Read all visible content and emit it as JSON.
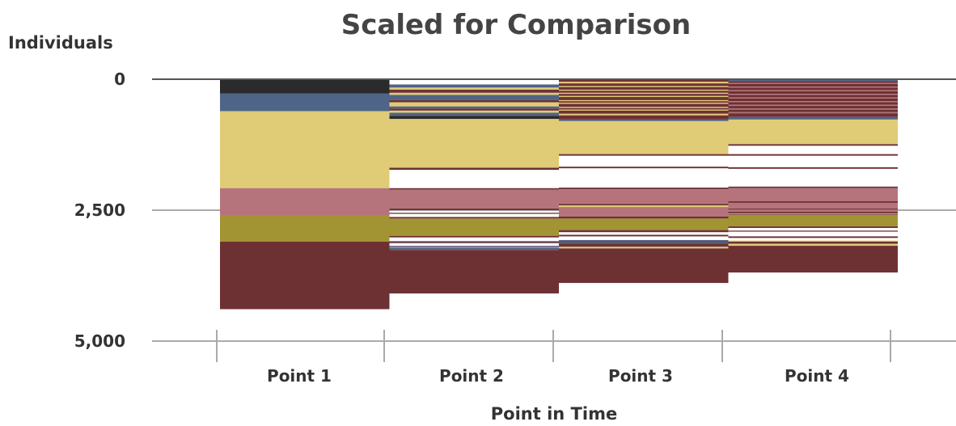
{
  "chart_data": {
    "type": "bar",
    "title": "Scaled for Comparison",
    "xlabel": "Point in Time",
    "ylabel": "Individuals",
    "y_axis_inverted": true,
    "ylim": [
      0,
      5000
    ],
    "ytick_values": [
      0,
      2500,
      5000
    ],
    "ytick_labels": [
      "0",
      "2,500",
      "5,000"
    ],
    "categories": [
      "Point 1",
      "Point 2",
      "Point 3",
      "Point 4"
    ],
    "grid": "horizontal",
    "colors": {
      "charcoal": "#2b2b2b",
      "slate": "#4f6587",
      "sand": "#e0cb76",
      "rose": "#b5747b",
      "olive": "#a39433",
      "maroon": "#6e3133",
      "axis": "#555555",
      "grid": "#aaaaaa"
    },
    "bars": [
      {
        "category": "Point 1",
        "segments": [
          {
            "from": 0,
            "to": 270,
            "color": "charcoal"
          },
          {
            "from": 270,
            "to": 610,
            "color": "slate"
          },
          {
            "from": 610,
            "to": 2080,
            "color": "sand"
          },
          {
            "from": 2080,
            "to": 2600,
            "color": "rose"
          },
          {
            "from": 2600,
            "to": 3100,
            "color": "olive"
          },
          {
            "from": 3100,
            "to": 4390,
            "color": "maroon"
          }
        ]
      },
      {
        "category": "Point 2",
        "segments": [
          {
            "from": 100,
            "to": 160,
            "color": "slate"
          },
          {
            "from": 160,
            "to": 200,
            "color": "sand"
          },
          {
            "from": 200,
            "to": 260,
            "color": "maroon"
          },
          {
            "from": 260,
            "to": 300,
            "color": "sand"
          },
          {
            "from": 300,
            "to": 400,
            "color": "slate"
          },
          {
            "from": 400,
            "to": 440,
            "color": "maroon"
          },
          {
            "from": 440,
            "to": 520,
            "color": "sand"
          },
          {
            "from": 520,
            "to": 560,
            "color": "slate"
          },
          {
            "from": 560,
            "to": 600,
            "color": "maroon"
          },
          {
            "from": 600,
            "to": 640,
            "color": "sand"
          },
          {
            "from": 640,
            "to": 700,
            "color": "slate"
          },
          {
            "from": 700,
            "to": 760,
            "color": "charcoal"
          },
          {
            "from": 760,
            "to": 1690,
            "color": "sand"
          },
          {
            "from": 1690,
            "to": 1730,
            "color": "maroon"
          },
          {
            "from": 2080,
            "to": 2110,
            "color": "maroon"
          },
          {
            "from": 2110,
            "to": 2470,
            "color": "rose"
          },
          {
            "from": 2470,
            "to": 2500,
            "color": "maroon"
          },
          {
            "from": 2550,
            "to": 2570,
            "color": "maroon"
          },
          {
            "from": 2630,
            "to": 2660,
            "color": "maroon"
          },
          {
            "from": 2660,
            "to": 2990,
            "color": "olive"
          },
          {
            "from": 2990,
            "to": 3020,
            "color": "maroon"
          },
          {
            "from": 3090,
            "to": 3110,
            "color": "slate"
          },
          {
            "from": 3110,
            "to": 3130,
            "color": "maroon"
          },
          {
            "from": 3180,
            "to": 3200,
            "color": "slate"
          },
          {
            "from": 3200,
            "to": 3220,
            "color": "rose"
          },
          {
            "from": 3220,
            "to": 3260,
            "color": "slate"
          },
          {
            "from": 3260,
            "to": 4090,
            "color": "maroon"
          }
        ]
      },
      {
        "category": "Point 3",
        "segments": [
          {
            "from": 0,
            "to": 50,
            "color": "maroon"
          },
          {
            "from": 50,
            "to": 80,
            "color": "sand"
          },
          {
            "from": 80,
            "to": 130,
            "color": "maroon"
          },
          {
            "from": 130,
            "to": 150,
            "color": "sand"
          },
          {
            "from": 150,
            "to": 200,
            "color": "maroon"
          },
          {
            "from": 200,
            "to": 220,
            "color": "sand"
          },
          {
            "from": 220,
            "to": 260,
            "color": "maroon"
          },
          {
            "from": 260,
            "to": 280,
            "color": "sand"
          },
          {
            "from": 280,
            "to": 320,
            "color": "maroon"
          },
          {
            "from": 320,
            "to": 340,
            "color": "sand"
          },
          {
            "from": 340,
            "to": 400,
            "color": "maroon"
          },
          {
            "from": 400,
            "to": 420,
            "color": "sand"
          },
          {
            "from": 420,
            "to": 450,
            "color": "maroon"
          },
          {
            "from": 450,
            "to": 470,
            "color": "sand"
          },
          {
            "from": 470,
            "to": 530,
            "color": "maroon"
          },
          {
            "from": 530,
            "to": 550,
            "color": "sand"
          },
          {
            "from": 550,
            "to": 580,
            "color": "maroon"
          },
          {
            "from": 580,
            "to": 600,
            "color": "sand"
          },
          {
            "from": 600,
            "to": 660,
            "color": "maroon"
          },
          {
            "from": 660,
            "to": 690,
            "color": "sand"
          },
          {
            "from": 690,
            "to": 770,
            "color": "maroon"
          },
          {
            "from": 770,
            "to": 800,
            "color": "slate"
          },
          {
            "from": 800,
            "to": 1430,
            "color": "sand"
          },
          {
            "from": 1430,
            "to": 1460,
            "color": "maroon"
          },
          {
            "from": 1670,
            "to": 1700,
            "color": "maroon"
          },
          {
            "from": 2070,
            "to": 2100,
            "color": "maroon"
          },
          {
            "from": 2100,
            "to": 2380,
            "color": "rose"
          },
          {
            "from": 2380,
            "to": 2410,
            "color": "maroon"
          },
          {
            "from": 2410,
            "to": 2440,
            "color": "sand"
          },
          {
            "from": 2440,
            "to": 2620,
            "color": "rose"
          },
          {
            "from": 2620,
            "to": 2660,
            "color": "maroon"
          },
          {
            "from": 2660,
            "to": 2880,
            "color": "olive"
          },
          {
            "from": 2880,
            "to": 2920,
            "color": "maroon"
          },
          {
            "from": 2970,
            "to": 3000,
            "color": "maroon"
          },
          {
            "from": 3070,
            "to": 3090,
            "color": "slate"
          },
          {
            "from": 3090,
            "to": 3110,
            "color": "maroon"
          },
          {
            "from": 3110,
            "to": 3140,
            "color": "slate"
          },
          {
            "from": 3140,
            "to": 3200,
            "color": "maroon"
          },
          {
            "from": 3200,
            "to": 3230,
            "color": "sand"
          },
          {
            "from": 3230,
            "to": 3890,
            "color": "maroon"
          }
        ]
      },
      {
        "category": "Point 4",
        "segments": [
          {
            "from": 0,
            "to": 40,
            "color": "slate"
          },
          {
            "from": 40,
            "to": 70,
            "color": "maroon"
          },
          {
            "from": 70,
            "to": 90,
            "color": "rose"
          },
          {
            "from": 90,
            "to": 140,
            "color": "maroon"
          },
          {
            "from": 140,
            "to": 160,
            "color": "rose"
          },
          {
            "from": 160,
            "to": 210,
            "color": "maroon"
          },
          {
            "from": 210,
            "to": 230,
            "color": "rose"
          },
          {
            "from": 230,
            "to": 280,
            "color": "maroon"
          },
          {
            "from": 280,
            "to": 300,
            "color": "rose"
          },
          {
            "from": 300,
            "to": 350,
            "color": "maroon"
          },
          {
            "from": 350,
            "to": 370,
            "color": "rose"
          },
          {
            "from": 370,
            "to": 420,
            "color": "maroon"
          },
          {
            "from": 420,
            "to": 440,
            "color": "rose"
          },
          {
            "from": 440,
            "to": 490,
            "color": "maroon"
          },
          {
            "from": 490,
            "to": 510,
            "color": "rose"
          },
          {
            "from": 510,
            "to": 560,
            "color": "maroon"
          },
          {
            "from": 560,
            "to": 580,
            "color": "rose"
          },
          {
            "from": 580,
            "to": 630,
            "color": "maroon"
          },
          {
            "from": 630,
            "to": 650,
            "color": "rose"
          },
          {
            "from": 650,
            "to": 720,
            "color": "maroon"
          },
          {
            "from": 720,
            "to": 770,
            "color": "slate"
          },
          {
            "from": 770,
            "to": 1240,
            "color": "sand"
          },
          {
            "from": 1240,
            "to": 1270,
            "color": "maroon"
          },
          {
            "from": 1430,
            "to": 1460,
            "color": "maroon"
          },
          {
            "from": 1680,
            "to": 1710,
            "color": "maroon"
          },
          {
            "from": 2050,
            "to": 2080,
            "color": "maroon"
          },
          {
            "from": 2080,
            "to": 2330,
            "color": "rose"
          },
          {
            "from": 2330,
            "to": 2360,
            "color": "maroon"
          },
          {
            "from": 2360,
            "to": 2470,
            "color": "rose"
          },
          {
            "from": 2470,
            "to": 2490,
            "color": "maroon"
          },
          {
            "from": 2490,
            "to": 2530,
            "color": "rose"
          },
          {
            "from": 2530,
            "to": 2560,
            "color": "maroon"
          },
          {
            "from": 2570,
            "to": 2590,
            "color": "maroon"
          },
          {
            "from": 2590,
            "to": 2810,
            "color": "olive"
          },
          {
            "from": 2810,
            "to": 2840,
            "color": "maroon"
          },
          {
            "from": 2890,
            "to": 2910,
            "color": "maroon"
          },
          {
            "from": 3000,
            "to": 3030,
            "color": "maroon"
          },
          {
            "from": 3080,
            "to": 3100,
            "color": "sand"
          },
          {
            "from": 3100,
            "to": 3140,
            "color": "maroon"
          },
          {
            "from": 3140,
            "to": 3180,
            "color": "sand"
          },
          {
            "from": 3180,
            "to": 3690,
            "color": "maroon"
          }
        ]
      }
    ]
  }
}
